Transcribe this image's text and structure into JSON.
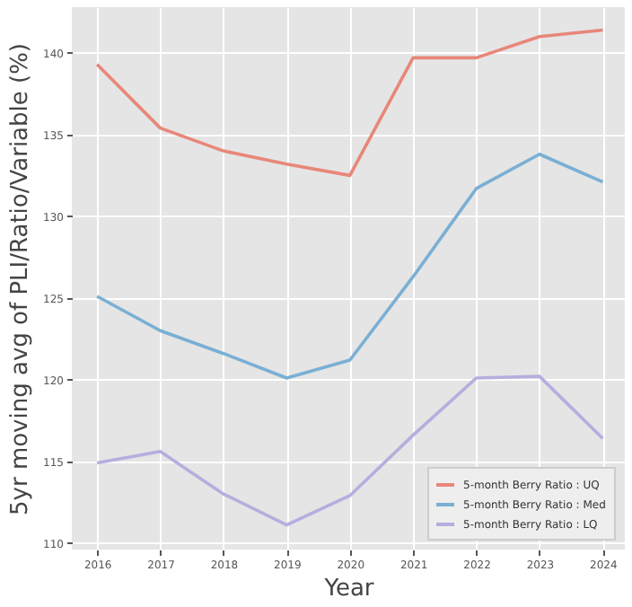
{
  "chart_data": {
    "type": "line",
    "xlabel": "Year",
    "ylabel": "5yr moving avg of PLI/Ratio/Variable (%)",
    "x": [
      2016,
      2017,
      2018,
      2019,
      2020,
      2021,
      2022,
      2023,
      2024
    ],
    "series": [
      {
        "name": "5-month Berry Ratio : UQ",
        "color": "#e8877a",
        "values": [
          139.3,
          135.4,
          134.0,
          133.2,
          132.5,
          139.7,
          139.7,
          141.0,
          141.4
        ]
      },
      {
        "name": "5-month Berry Ratio : Med",
        "color": "#7aafd4",
        "values": [
          125.1,
          123.0,
          121.6,
          120.1,
          121.2,
          126.3,
          131.7,
          133.8,
          132.1
        ]
      },
      {
        "name": "5-month Berry Ratio : LQ",
        "color": "#b5aede",
        "values": [
          114.9,
          115.6,
          113.0,
          111.1,
          112.9,
          116.6,
          120.1,
          120.2,
          116.4
        ]
      }
    ],
    "xlim": [
      2015.6,
      2024.35
    ],
    "xticks": [
      2016,
      2017,
      2018,
      2019,
      2020,
      2021,
      2022,
      2023,
      2024
    ],
    "ylim": [
      109.6,
      142.8
    ],
    "yticks": [
      110,
      115,
      120,
      125,
      130,
      135,
      140
    ],
    "grid": true,
    "legend": "bottom right",
    "marker": "none",
    "line_style": "solid"
  }
}
